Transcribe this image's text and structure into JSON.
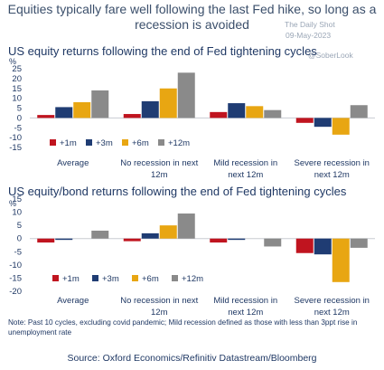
{
  "headline": "Equities typically fare well following the last Fed hike, so long as a recession is avoided",
  "watermark": {
    "brand": "The Daily Shot",
    "date": "09-May-2023",
    "handle": "@SoberLook"
  },
  "colors": {
    "+1m": "#c0141f",
    "+3m": "#1f3c73",
    "+6m": "#e8a612",
    "+12m": "#8a8a8a"
  },
  "chart_data": [
    {
      "type": "bar",
      "title": "US equity returns following the end of Fed tightening cycles",
      "ylabel": "%",
      "ylim": [
        -15,
        25
      ],
      "yticks": [
        25,
        20,
        15,
        10,
        5,
        0,
        -5,
        -10,
        -15
      ],
      "categories": [
        [
          "Average"
        ],
        [
          "No recession in next",
          "12m"
        ],
        [
          "Mild recession in",
          "next 12m"
        ],
        [
          "Severe recession in",
          "next 12m"
        ]
      ],
      "series": [
        {
          "name": "+1m",
          "values": [
            1.5,
            2,
            3,
            -2.5
          ]
        },
        {
          "name": "+3m",
          "values": [
            5.5,
            8.5,
            7.5,
            -4.5
          ]
        },
        {
          "name": "+6m",
          "values": [
            8,
            15,
            6,
            -8.5
          ]
        },
        {
          "name": "+12m",
          "values": [
            14,
            23,
            4,
            6.5
          ]
        }
      ]
    },
    {
      "type": "bar",
      "title": "US equity/bond returns following the end of Fed tightening cycles",
      "ylabel": "%",
      "ylim": [
        -20,
        15
      ],
      "yticks": [
        15,
        10,
        5,
        0,
        -5,
        -10,
        -15,
        -20
      ],
      "categories": [
        [
          "Average"
        ],
        [
          "No recession in next",
          "12m"
        ],
        [
          "Mild recession in",
          "next 12m"
        ],
        [
          "Severe recession in",
          "next 12m"
        ]
      ],
      "series": [
        {
          "name": "+1m",
          "values": [
            -1.5,
            -1,
            -1.5,
            -5.5
          ]
        },
        {
          "name": "+3m",
          "values": [
            -0.5,
            2,
            -0.5,
            -6
          ]
        },
        {
          "name": "+6m",
          "values": [
            0,
            5,
            0,
            -16.5
          ]
        },
        {
          "name": "+12m",
          "values": [
            3,
            9.5,
            -3,
            -3.5
          ]
        }
      ]
    }
  ],
  "note": "Note: Past 10 cycles, excluding covid pandemic; Mild recession defined as those with less than 3ppt rise in unemployment rate",
  "source": "Source: Oxford Economics/Refinitiv Datastream/Bloomberg"
}
